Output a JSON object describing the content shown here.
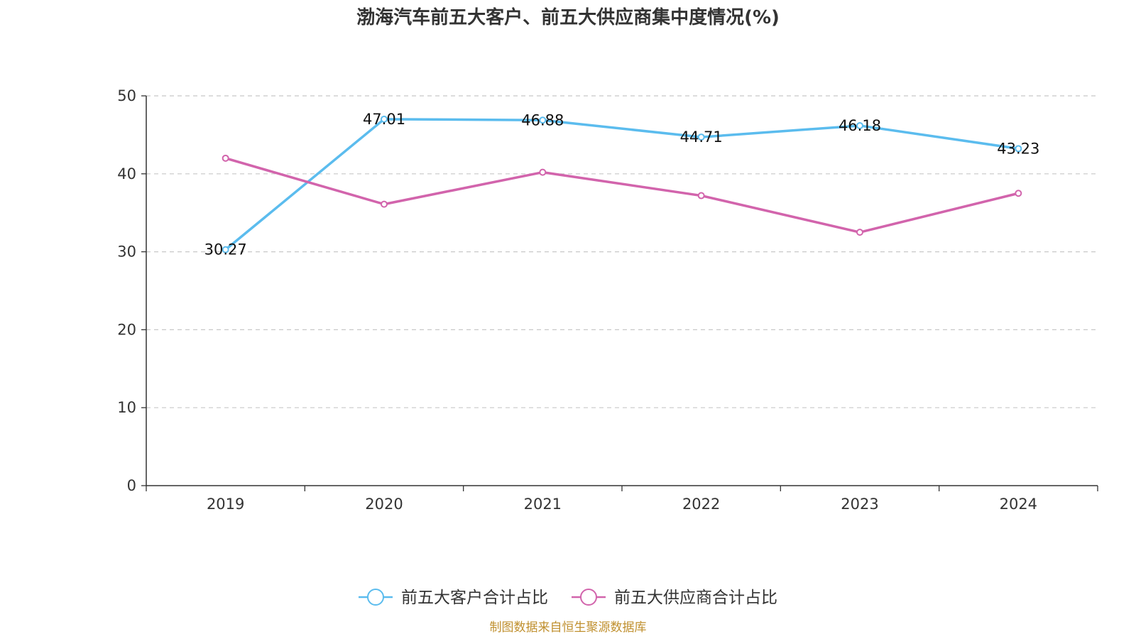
{
  "colors": {
    "customers": "#5bbcee",
    "suppliers": "#d264ac",
    "source": "#c0902f",
    "axis": "#333333",
    "grid": "#c8c8c8"
  },
  "footer": {
    "source": "制图数据来自恒生聚源数据库"
  },
  "chart_data": {
    "type": "line",
    "title": "渤海汽车前五大客户、前五大供应商集中度情况(%)",
    "xlabel": "",
    "ylabel": "",
    "categories": [
      "2019",
      "2020",
      "2021",
      "2022",
      "2023",
      "2024"
    ],
    "ylim": [
      0,
      50
    ],
    "yticks": [
      "0",
      "10",
      "20",
      "30",
      "40",
      "50"
    ],
    "grid": true,
    "legend_position": "bottom",
    "series": [
      {
        "name": "前五大客户合计占比",
        "values": [
          30.27,
          47.01,
          46.88,
          44.71,
          46.18,
          43.23
        ],
        "labels": [
          "30.27",
          "47.01",
          "46.88",
          "44.71",
          "46.18",
          "43.23"
        ]
      },
      {
        "name": "前五大供应商合计占比",
        "values": [
          42.0,
          36.1,
          40.2,
          37.2,
          32.5,
          37.5
        ]
      }
    ]
  }
}
